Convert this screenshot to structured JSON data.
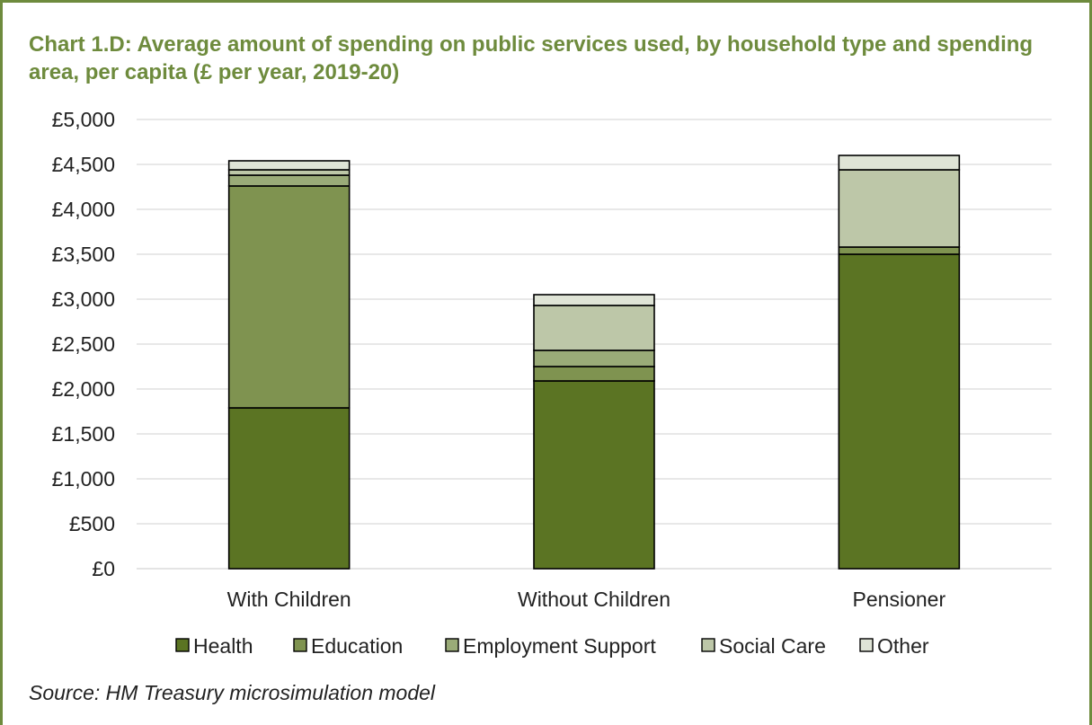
{
  "chart_data": {
    "type": "bar",
    "stacked": true,
    "title": "Chart 1.D: Average amount of spending on public services used, by household type and spending area, per capita (£ per year, 2019-20)",
    "categories": [
      "With Children",
      "Without Children",
      "Pensioner"
    ],
    "series": [
      {
        "name": "Health",
        "color": "#5b7423",
        "values": [
          1790,
          2090,
          3500
        ]
      },
      {
        "name": "Education",
        "color": "#7f9350",
        "values": [
          2470,
          160,
          80
        ]
      },
      {
        "name": "Employment Support",
        "color": "#9aab78",
        "values": [
          120,
          180,
          0
        ]
      },
      {
        "name": "Social Care",
        "color": "#bdc7a8",
        "values": [
          60,
          500,
          860
        ]
      },
      {
        "name": "Other",
        "color": "#dfe4d6",
        "values": [
          100,
          120,
          160
        ]
      }
    ],
    "ylim": [
      0,
      5000
    ],
    "yticks": [
      0,
      500,
      1000,
      1500,
      2000,
      2500,
      3000,
      3500,
      4000,
      4500,
      5000
    ],
    "ytick_labels": [
      "£0",
      "£500",
      "£1,000",
      "£1,500",
      "£2,000",
      "£2,500",
      "£3,000",
      "£3,500",
      "£4,000",
      "£4,500",
      "£5,000"
    ],
    "grid": true,
    "legend": "bottom",
    "xlabel": "",
    "ylabel": "",
    "source": "Source: HM Treasury microsimulation model"
  }
}
